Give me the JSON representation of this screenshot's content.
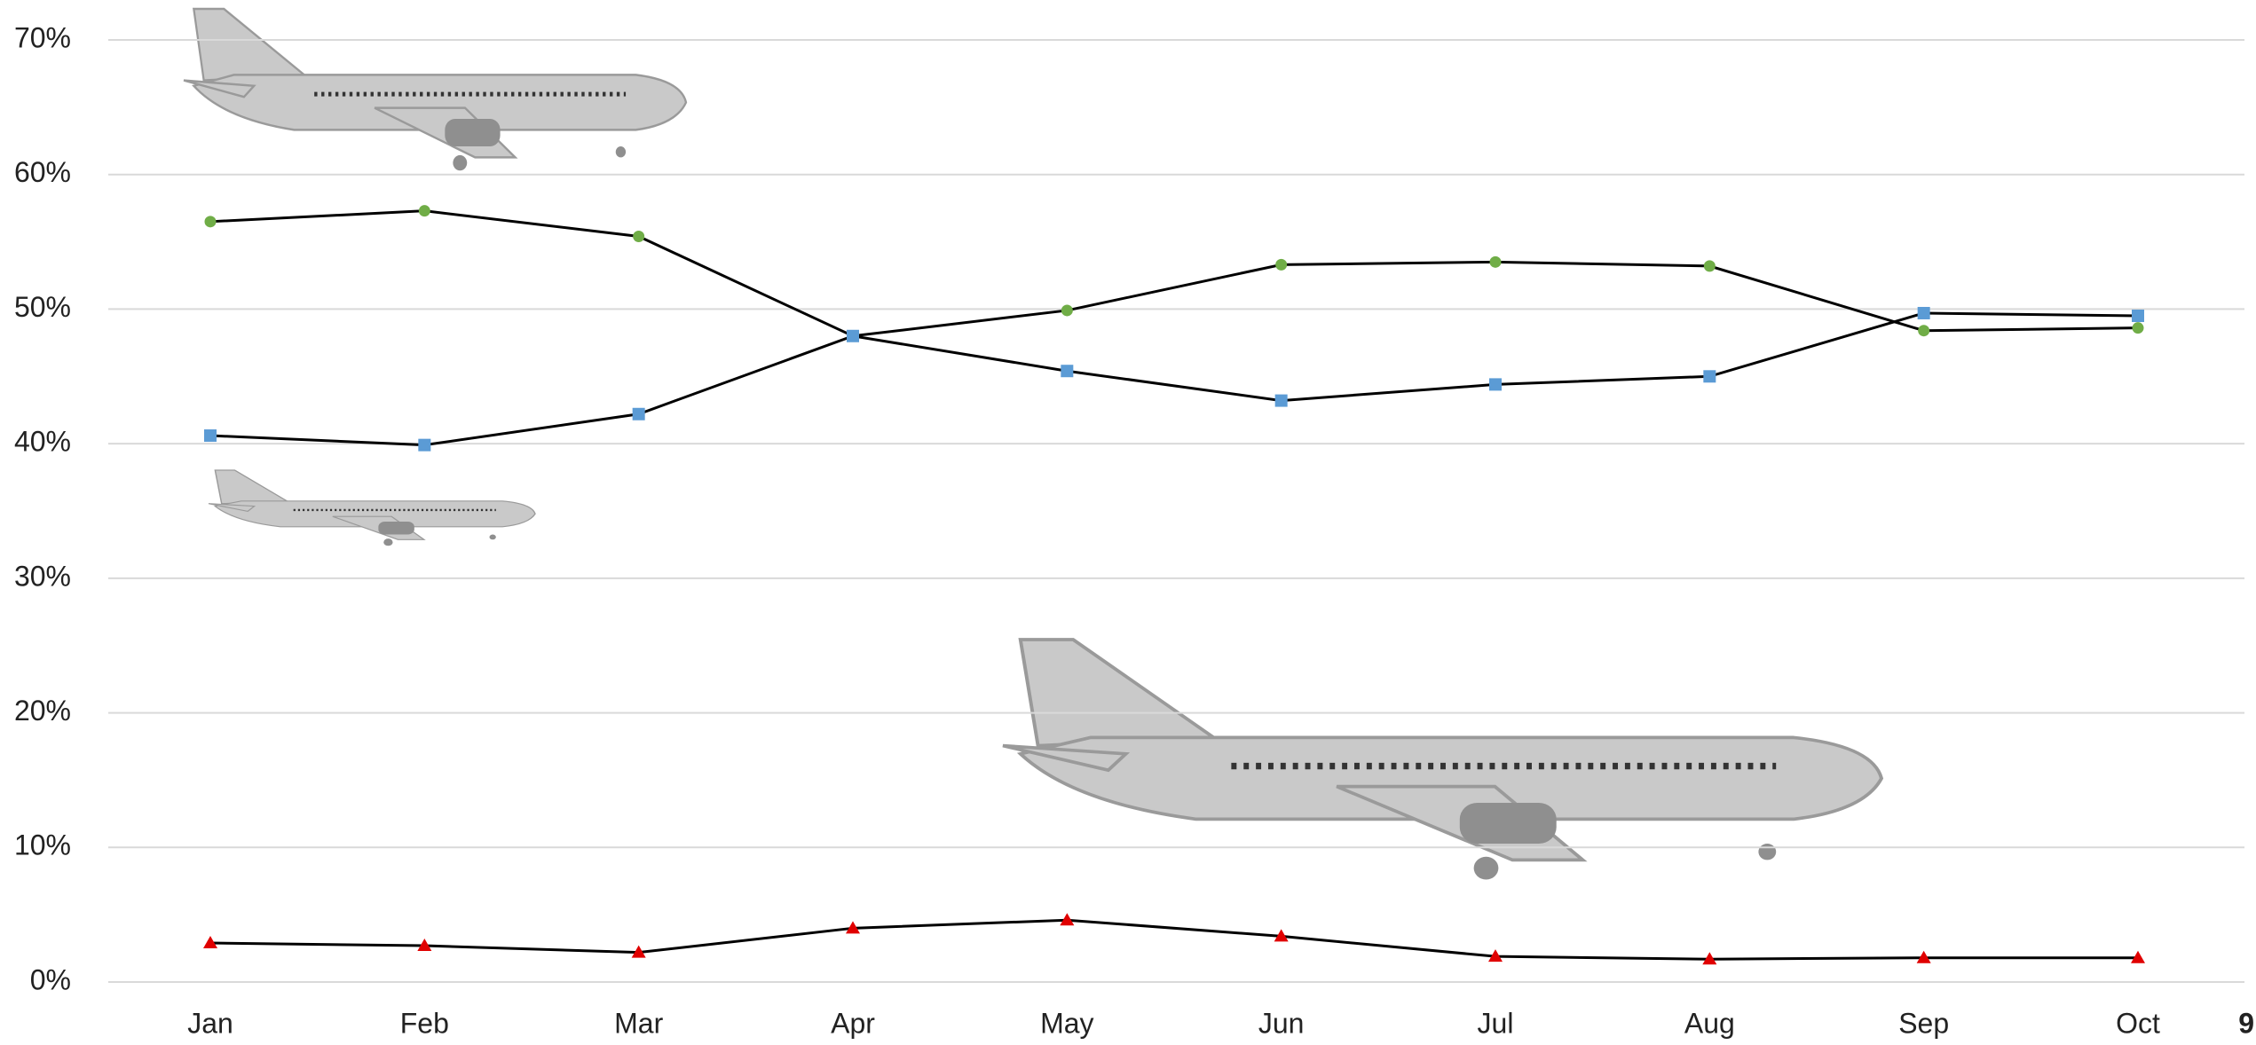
{
  "chart_data": {
    "type": "line",
    "categories": [
      "Jan",
      "Feb",
      "Mar",
      "Apr",
      "May",
      "Jun",
      "Jul",
      "Aug",
      "Sep",
      "Oct"
    ],
    "series": [
      {
        "color": "#70ad47",
        "marker": "circle",
        "values": [
          56.5,
          57.3,
          55.4,
          48.0,
          49.9,
          53.3,
          53.5,
          53.2,
          48.4,
          48.6
        ]
      },
      {
        "color": "#5b9bd5",
        "marker": "square",
        "values": [
          40.6,
          39.9,
          42.2,
          48.0,
          45.4,
          43.2,
          44.4,
          45.0,
          49.7,
          49.5
        ]
      },
      {
        "color": "#e00000",
        "marker": "triangle",
        "values": [
          2.9,
          2.7,
          2.2,
          4.0,
          4.6,
          3.4,
          1.9,
          1.7,
          1.8,
          1.8
        ]
      }
    ],
    "line_color": "#000000",
    "ylim": [
      0,
      70
    ],
    "yticks": [
      {
        "value": 0,
        "label": "0%"
      },
      {
        "value": 10,
        "label": "10%"
      },
      {
        "value": 20,
        "label": "20%"
      },
      {
        "value": 30,
        "label": "30%"
      },
      {
        "value": 40,
        "label": "40%"
      },
      {
        "value": 50,
        "label": "50%"
      },
      {
        "value": 60,
        "label": "60%"
      },
      {
        "value": 70,
        "label": "70%"
      }
    ],
    "grid": true,
    "page_number": "9"
  }
}
